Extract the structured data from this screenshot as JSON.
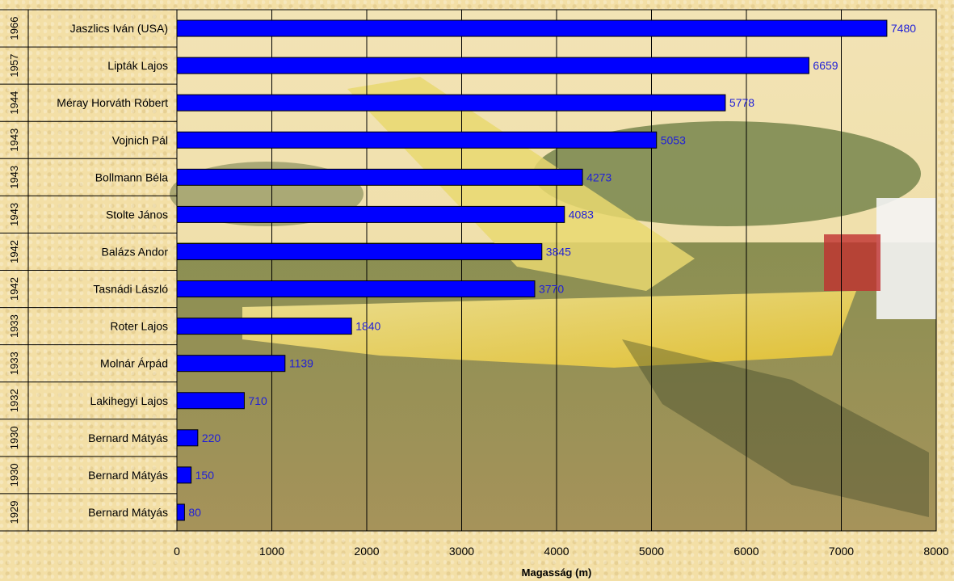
{
  "chart_data": {
    "type": "bar",
    "orientation": "horizontal",
    "categories": [
      "Jaszlics Iván (USA)",
      "Lipták Lajos",
      "Méray Horváth Róbert",
      "Vojnich Pál",
      "Bollmann Béla",
      "Stolte János",
      "Balázs Andor",
      "Tasnádi László",
      "Roter Lajos",
      "Molnár Árpád",
      "Lakihegyi Lajos",
      "Bernard Mátyás",
      "Bernard Mátyás",
      "Bernard Mátyás"
    ],
    "years": [
      "1966",
      "1957",
      "1944",
      "1943",
      "1943",
      "1943",
      "1942",
      "1942",
      "1933",
      "1933",
      "1932",
      "1930",
      "1930",
      "1929"
    ],
    "values": [
      7480,
      6659,
      5778,
      5053,
      4273,
      4083,
      3845,
      3770,
      1840,
      1139,
      710,
      220,
      150,
      80
    ],
    "data_labels": [
      "7480",
      "6659",
      "5778",
      "5053",
      "4273",
      "4083",
      "3845",
      "3770",
      "1840",
      "1139",
      "710",
      "220",
      "150",
      "80"
    ],
    "xlabel": "Magasság (m)",
    "ylabel": "",
    "xlim": [
      0,
      8000
    ],
    "xticks": [
      "0",
      "1000",
      "2000",
      "3000",
      "4000",
      "5000",
      "6000",
      "7000",
      "8000"
    ],
    "grid": true,
    "bar_color": "#0000ff",
    "label_color": "#1f1fd8"
  }
}
